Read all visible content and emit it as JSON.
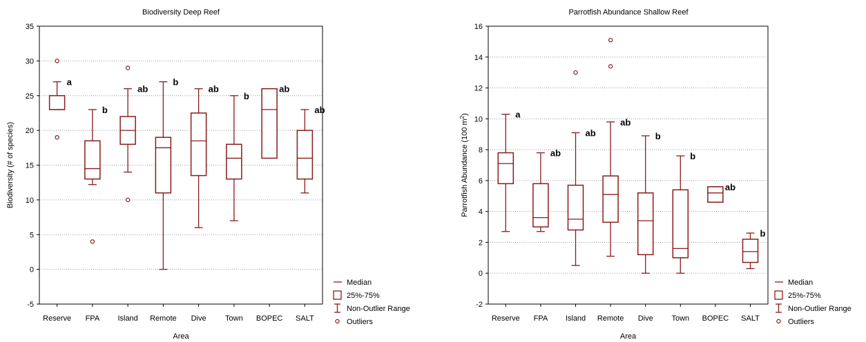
{
  "chart_data": [
    {
      "type": "box",
      "title": "Biodiversity Deep Reef",
      "xlabel": "Area",
      "ylabel": "Biodiversity (# of species)",
      "ylim": [
        -5,
        35
      ],
      "yticks": [
        "-5",
        "0",
        "5",
        "10",
        "15",
        "20",
        "25",
        "30",
        "35"
      ],
      "grid": true,
      "legend_position": "right",
      "categories": [
        "Reserve",
        "FPA",
        "Island",
        "Remote",
        "Dive",
        "Town",
        "BOPEC",
        "SALT"
      ],
      "boxes": [
        {
          "min": 23,
          "q1": 23,
          "median": 23,
          "q3": 25,
          "max": 27,
          "outliers": [
            30,
            19
          ],
          "label": "a"
        },
        {
          "min": 12.2,
          "q1": 13,
          "median": 14.5,
          "q3": 18.5,
          "max": 23,
          "outliers": [
            4
          ],
          "label": "b"
        },
        {
          "min": 14,
          "q1": 18,
          "median": 20,
          "q3": 22,
          "max": 26,
          "outliers": [
            29,
            10
          ],
          "label": "ab"
        },
        {
          "min": 0,
          "q1": 11,
          "median": 17.5,
          "q3": 19,
          "max": 27,
          "outliers": [],
          "label": "b"
        },
        {
          "min": 6,
          "q1": 13.5,
          "median": 18.5,
          "q3": 22.5,
          "max": 26,
          "outliers": [],
          "label": "ab"
        },
        {
          "min": 7,
          "q1": 13,
          "median": 16,
          "q3": 18,
          "max": 25,
          "outliers": [],
          "label": "b"
        },
        {
          "min": 16,
          "q1": 16,
          "median": 23,
          "q3": 26,
          "max": 26,
          "outliers": [],
          "label": "ab"
        },
        {
          "min": 11,
          "q1": 13,
          "median": 16,
          "q3": 20,
          "max": 23,
          "outliers": [],
          "label": "ab"
        }
      ],
      "legend": [
        "Median",
        "25%-75%",
        "Non-Outlier Range",
        "Outliers"
      ],
      "color": "#8b1a1a"
    },
    {
      "type": "box",
      "title": "Parrotfish Abundance Shallow Reef",
      "xlabel": "Area",
      "ylabel": "Parrotfish Abundance (100 m",
      "ylabel_sup": "2",
      "ylabel_end": ")",
      "ylim": [
        -2,
        16
      ],
      "yticks": [
        "-2",
        "0",
        "2",
        "4",
        "6",
        "8",
        "10",
        "12",
        "14",
        "16"
      ],
      "grid": true,
      "legend_position": "right",
      "categories": [
        "Reserve",
        "FPA",
        "Island",
        "Remote",
        "Dive",
        "Town",
        "BOPEC",
        "SALT"
      ],
      "boxes": [
        {
          "min": 2.7,
          "q1": 5.8,
          "median": 7.1,
          "q3": 7.8,
          "max": 10.3,
          "outliers": [],
          "label": "a"
        },
        {
          "min": 2.7,
          "q1": 3.0,
          "median": 3.6,
          "q3": 5.8,
          "max": 7.8,
          "outliers": [],
          "label": "ab"
        },
        {
          "min": 0.5,
          "q1": 2.8,
          "median": 3.5,
          "q3": 5.7,
          "max": 9.1,
          "outliers": [
            13.0
          ],
          "label": "ab"
        },
        {
          "min": 1.1,
          "q1": 3.3,
          "median": 5.1,
          "q3": 6.3,
          "max": 9.8,
          "outliers": [
            15.1,
            13.4
          ],
          "label": "ab"
        },
        {
          "min": 0,
          "q1": 1.2,
          "median": 3.4,
          "q3": 5.2,
          "max": 8.9,
          "outliers": [],
          "label": "b"
        },
        {
          "min": 0,
          "q1": 1.0,
          "median": 1.6,
          "q3": 5.4,
          "max": 7.6,
          "outliers": [],
          "label": "b"
        },
        {
          "min": 4.6,
          "q1": 4.6,
          "median": 5.2,
          "q3": 5.6,
          "max": 5.6,
          "outliers": [],
          "label": "ab"
        },
        {
          "min": 0.3,
          "q1": 0.7,
          "median": 1.4,
          "q3": 2.2,
          "max": 2.6,
          "outliers": [],
          "label": "b"
        }
      ],
      "legend": [
        "Median",
        "25%-75%",
        "Non-Outlier Range",
        "Outliers"
      ],
      "color": "#8b1a1a"
    }
  ]
}
